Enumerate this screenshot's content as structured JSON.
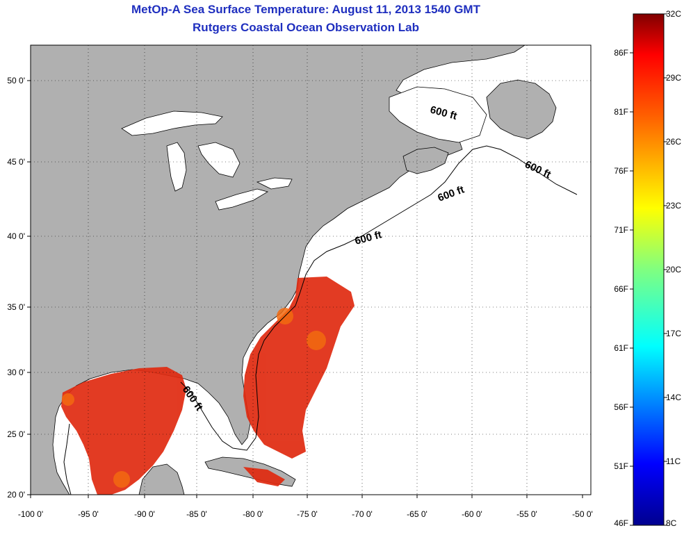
{
  "title": "MetOp-A Sea Surface Temperature:  August 11, 2013 1540 GMT",
  "subtitle": "Rutgers Coastal Ocean Observation Lab",
  "lon_ticks": [
    "-100 0'",
    "-95 0'",
    "-90 0'",
    "-85 0'",
    "-80 0'",
    "-75 0'",
    "-70 0'",
    "-65 0'",
    "-60 0'",
    "-55 0'",
    "-50 0'"
  ],
  "lat_ticks": [
    "50 0'",
    "45 0'",
    "40 0'",
    "35 0'",
    "30 0'",
    "25 0'",
    "20 0'"
  ],
  "contour_label": "600 ft",
  "colorbar": {
    "celsius": [
      "32C",
      "29C",
      "26C",
      "23C",
      "20C",
      "17C",
      "14C",
      "11C",
      "8C"
    ],
    "fahrenheit": [
      "86F",
      "81F",
      "76F",
      "71F",
      "66F",
      "61F",
      "56F",
      "51F",
      "46F"
    ],
    "colors": [
      "#00008f",
      "#0000ff",
      "#0080ff",
      "#00ffff",
      "#80ff80",
      "#ffff00",
      "#ff8000",
      "#ff0000",
      "#800000"
    ]
  },
  "colors": {
    "land": "#b0b0b0",
    "ocean": "#ffffff",
    "sst": "#e02a10",
    "title": "#1f2fbf"
  }
}
